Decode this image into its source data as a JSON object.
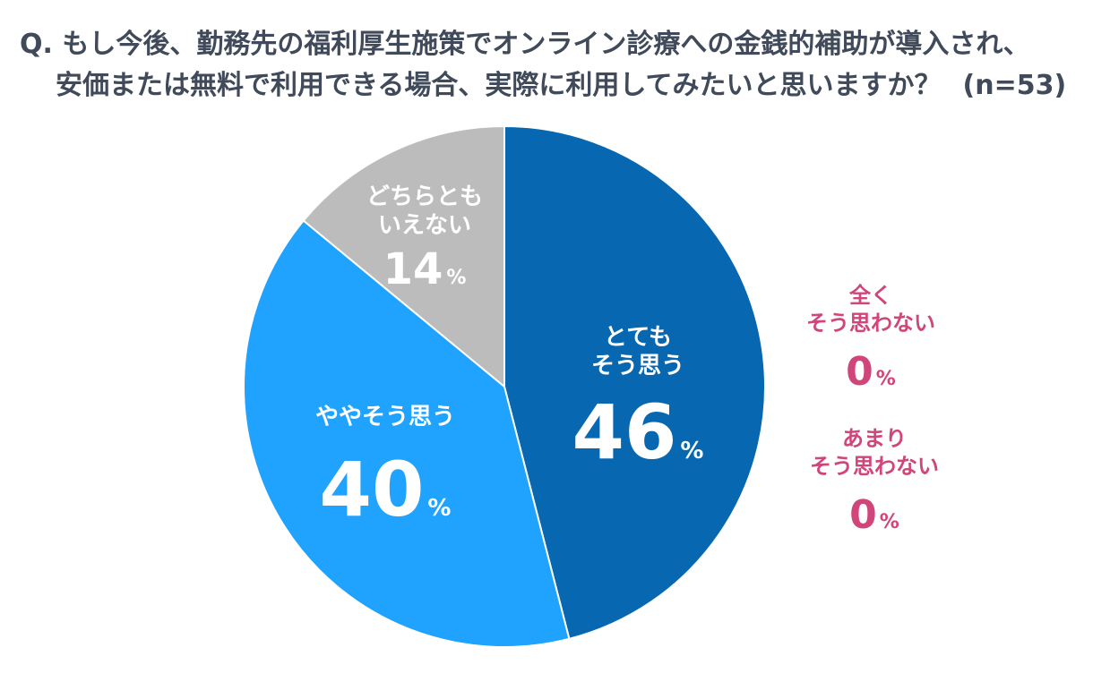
{
  "title": {
    "line1": "Q. もし今後、勤務先の福利厚生施策でオンライン診療への金銭的補助が導入され、",
    "line2": "安価または無料で利用できる場合、実際に利用してみたいと思いますか？",
    "n_label": "(n=53)"
  },
  "colors": {
    "text": "#404a5a",
    "side_label": "#d0457a",
    "slice_stroke": "#ffffff"
  },
  "chart_data": {
    "type": "pie",
    "title": "もし今後、勤務先の福利厚生施策でオンライン診療への金銭的補助が導入され、安価または無料で利用できる場合、実際に利用してみたいと思いますか？",
    "n": 53,
    "unit": "%",
    "start": "12 o'clock, clockwise",
    "slices": [
      {
        "label_lines": [
          "とても",
          "そう思う"
        ],
        "value": 46,
        "color": "#0767b0"
      },
      {
        "label_lines": [
          "ややそう思う"
        ],
        "value": 40,
        "color": "#1fa3ff"
      },
      {
        "label_lines": [
          "どちらとも",
          "いえない"
        ],
        "value": 14,
        "color": "#bcbcbc"
      }
    ],
    "zero_categories": [
      {
        "label_lines": [
          "全く",
          "そう思わない"
        ],
        "value": 0
      },
      {
        "label_lines": [
          "あまり",
          "そう思わない"
        ],
        "value": 0
      }
    ]
  }
}
